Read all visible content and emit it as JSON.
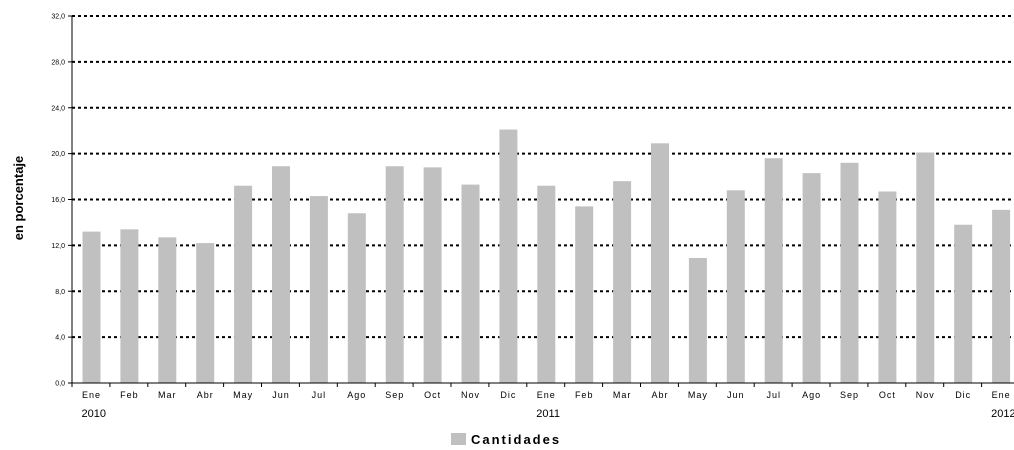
{
  "chart_data": {
    "type": "bar",
    "ylabel": "en porcentaje",
    "ylim": [
      0,
      32
    ],
    "yticks": [
      "0,0",
      "4,0",
      "8,0",
      "12,0",
      "16,0",
      "20,0",
      "24,0",
      "28,0",
      "32,0"
    ],
    "categories": [
      "Ene",
      "Feb",
      "Mar",
      "Abr",
      "May",
      "Jun",
      "Jul",
      "Ago",
      "Sep",
      "Oct",
      "Nov",
      "Dic",
      "Ene",
      "Feb",
      "Mar",
      "Abr",
      "May",
      "Jun",
      "Jul",
      "Ago",
      "Sep",
      "Oct",
      "Nov",
      "Dic",
      "Ene"
    ],
    "year_labels": [
      {
        "text": "2010",
        "category_index": 0
      },
      {
        "text": "2011",
        "category_index": 12
      },
      {
        "text": "2012",
        "category_index": 24
      }
    ],
    "series": [
      {
        "name": "Cantidades",
        "color": "#c0c0c0",
        "values": [
          13.2,
          13.4,
          12.7,
          12.2,
          17.2,
          18.9,
          16.3,
          14.8,
          18.9,
          18.8,
          17.3,
          22.1,
          17.2,
          15.4,
          17.6,
          20.9,
          10.9,
          16.8,
          19.6,
          18.3,
          19.2,
          16.7,
          20.1,
          13.8,
          15.1
        ]
      }
    ],
    "grid": true,
    "legend": "bottom"
  }
}
